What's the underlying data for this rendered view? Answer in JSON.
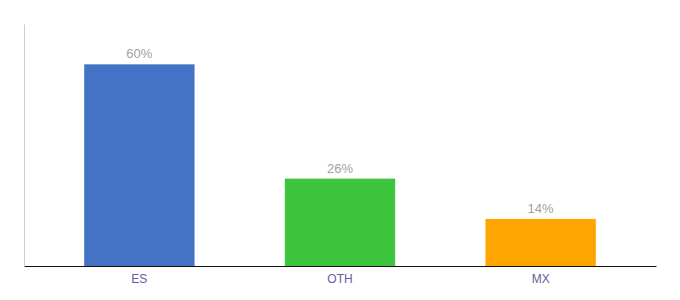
{
  "chart_data": {
    "type": "bar",
    "categories": [
      "ES",
      "OTH",
      "MX"
    ],
    "values": [
      60,
      26,
      14
    ],
    "value_labels": [
      "60%",
      "26%",
      "14%"
    ],
    "colors": [
      "#4472C4",
      "#3DC53D",
      "#FFA500"
    ],
    "ylim": [
      0,
      72
    ],
    "data_labels": true,
    "tick_labels": "x",
    "grid": false
  }
}
